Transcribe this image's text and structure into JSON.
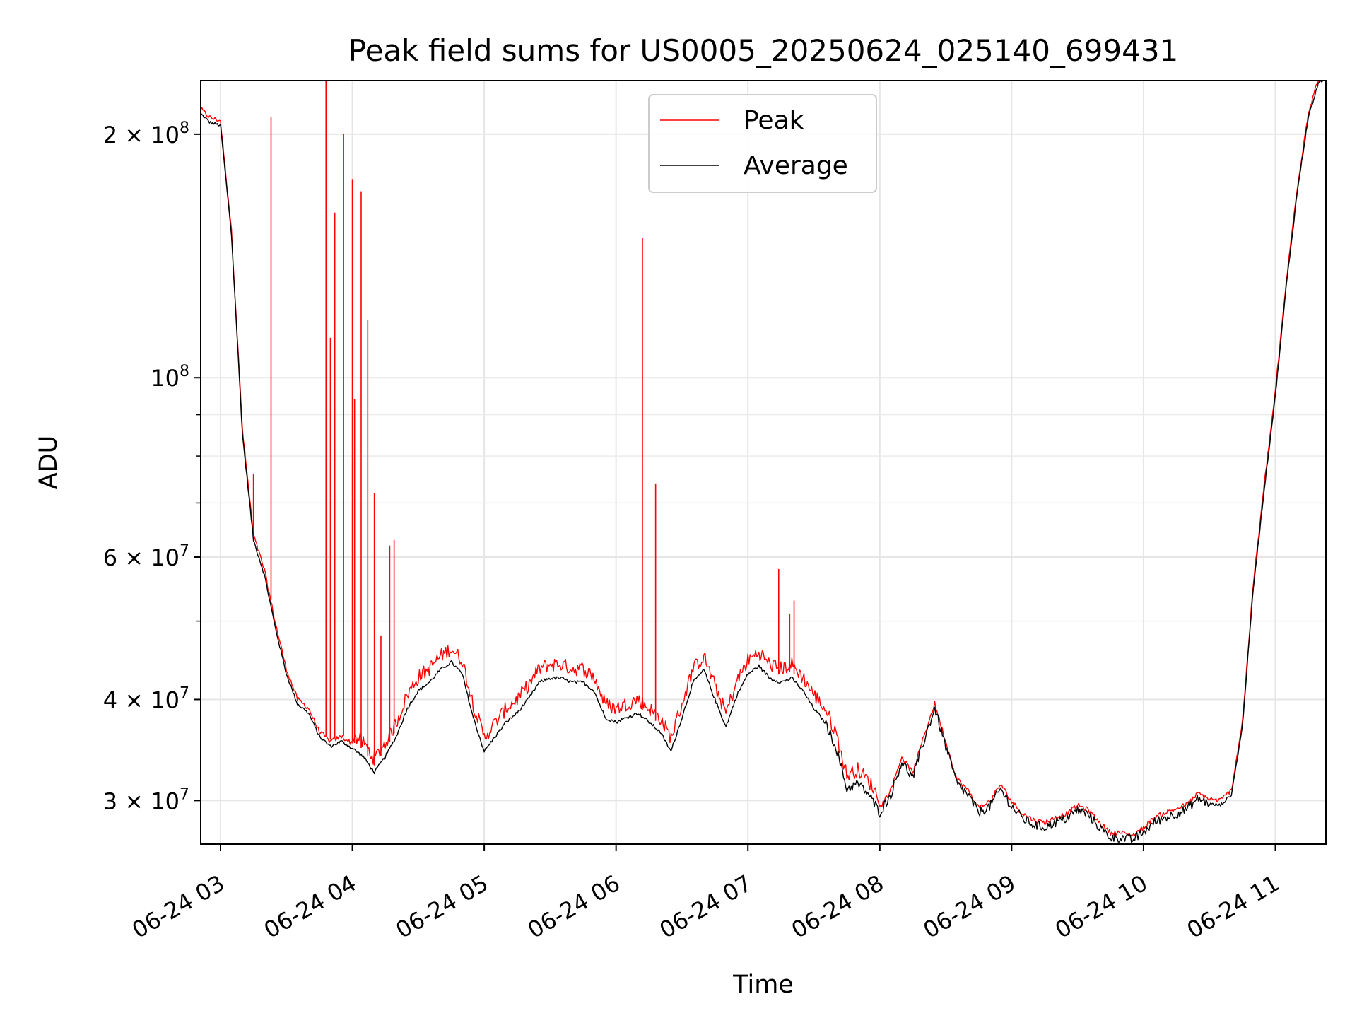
{
  "chart_data": {
    "type": "line",
    "title": "Peak field sums for US0005_20250624_025140_699431",
    "xlabel": "Time",
    "ylabel": "ADU",
    "yscale": "log",
    "ylim": [
      26500000,
      233000000
    ],
    "xlim": [
      "2025-06-24 02:51",
      "2025-06-24 11:23"
    ],
    "grid": true,
    "legend_position": "upper center",
    "x_ticks": [
      "06-24 03",
      "06-24 04",
      "06-24 05",
      "06-24 06",
      "06-24 07",
      "06-24 08",
      "06-24 09",
      "06-24 10",
      "06-24 11"
    ],
    "y_ticks": [
      {
        "value": 30000000,
        "mantissa": "3",
        "exp": "7"
      },
      {
        "value": 40000000,
        "mantissa": "4",
        "exp": "7"
      },
      {
        "value": 60000000,
        "mantissa": "6",
        "exp": "7"
      },
      {
        "value": 100000000,
        "mantissa": "",
        "exp": "8"
      },
      {
        "value": 200000000,
        "mantissa": "2",
        "exp": "8"
      }
    ],
    "x_unit_note": "x values in time of day on 2025-06-24, HH:MM",
    "series": [
      {
        "name": "Peak",
        "color": "#ff0000",
        "spikes": [
          {
            "x": "03:15",
            "y": 76000000
          },
          {
            "x": "03:23",
            "y": 210000000
          },
          {
            "x": "03:48",
            "y": 233000000
          },
          {
            "x": "03:50",
            "y": 112000000
          },
          {
            "x": "03:52",
            "y": 160000000
          },
          {
            "x": "03:56",
            "y": 200000000
          },
          {
            "x": "04:00",
            "y": 176000000
          },
          {
            "x": "04:01",
            "y": 94000000
          },
          {
            "x": "04:04",
            "y": 170000000
          },
          {
            "x": "04:07",
            "y": 118000000
          },
          {
            "x": "04:10",
            "y": 72000000
          },
          {
            "x": "04:13",
            "y": 48000000
          },
          {
            "x": "04:17",
            "y": 62000000
          },
          {
            "x": "04:19",
            "y": 63000000
          },
          {
            "x": "06:12",
            "y": 149000000
          },
          {
            "x": "06:18",
            "y": 74000000
          },
          {
            "x": "07:14",
            "y": 58000000
          },
          {
            "x": "07:19",
            "y": 51000000
          },
          {
            "x": "07:21",
            "y": 53000000
          }
        ]
      },
      {
        "name": "Average",
        "color": "#000000",
        "x": [
          "02:51",
          "02:55",
          "03:00",
          "03:05",
          "03:10",
          "03:15",
          "03:20",
          "03:25",
          "03:30",
          "03:35",
          "03:40",
          "03:45",
          "03:50",
          "03:55",
          "04:00",
          "04:05",
          "04:10",
          "04:15",
          "04:20",
          "04:25",
          "04:30",
          "04:35",
          "04:40",
          "04:45",
          "04:50",
          "04:55",
          "05:00",
          "05:05",
          "05:10",
          "05:15",
          "05:20",
          "05:25",
          "05:30",
          "05:35",
          "05:40",
          "05:45",
          "05:50",
          "05:55",
          "06:00",
          "06:05",
          "06:10",
          "06:15",
          "06:20",
          "06:25",
          "06:30",
          "06:35",
          "06:40",
          "06:45",
          "06:50",
          "06:55",
          "07:00",
          "07:05",
          "07:10",
          "07:15",
          "07:20",
          "07:25",
          "07:30",
          "07:35",
          "07:40",
          "07:45",
          "07:50",
          "07:55",
          "08:00",
          "08:05",
          "08:10",
          "08:15",
          "08:20",
          "08:25",
          "08:30",
          "08:35",
          "08:40",
          "08:45",
          "08:50",
          "08:55",
          "09:00",
          "09:05",
          "09:10",
          "09:15",
          "09:20",
          "09:25",
          "09:30",
          "09:35",
          "09:40",
          "09:45",
          "09:50",
          "09:55",
          "10:00",
          "10:05",
          "10:10",
          "10:15",
          "10:20",
          "10:25",
          "10:30",
          "10:35",
          "10:40",
          "10:45",
          "10:50",
          "10:55",
          "11:00",
          "11:05",
          "11:10",
          "11:15",
          "11:20",
          "11:23"
        ],
        "y": [
          212000000,
          207000000,
          205000000,
          150000000,
          85000000,
          63000000,
          57000000,
          49000000,
          43000000,
          39500000,
          38500000,
          36000000,
          35000000,
          35500000,
          34800000,
          34000000,
          32500000,
          34000000,
          36000000,
          39000000,
          41000000,
          42000000,
          43500000,
          44500000,
          43000000,
          38000000,
          34500000,
          36000000,
          37500000,
          38500000,
          40000000,
          42000000,
          42500000,
          42500000,
          42000000,
          42000000,
          41000000,
          38000000,
          37500000,
          38000000,
          38500000,
          37500000,
          36500000,
          34500000,
          38000000,
          42000000,
          43500000,
          40000000,
          37000000,
          40500000,
          43000000,
          44000000,
          42500000,
          42000000,
          42500000,
          41000000,
          39000000,
          37500000,
          35000000,
          31000000,
          31500000,
          30500000,
          29000000,
          30500000,
          33500000,
          32000000,
          35500000,
          39000000,
          35000000,
          31500000,
          30500000,
          29000000,
          29500000,
          31000000,
          29500000,
          28500000,
          28000000,
          27800000,
          28200000,
          28500000,
          29200000,
          28800000,
          27800000,
          27000000,
          27000000,
          26800000,
          27400000,
          28200000,
          28600000,
          28900000,
          29300000,
          30200000,
          29700000,
          29600000,
          30500000,
          37000000,
          55000000,
          73000000,
          95000000,
          130000000,
          170000000,
          210000000,
          233000000,
          233000000
        ]
      }
    ]
  }
}
